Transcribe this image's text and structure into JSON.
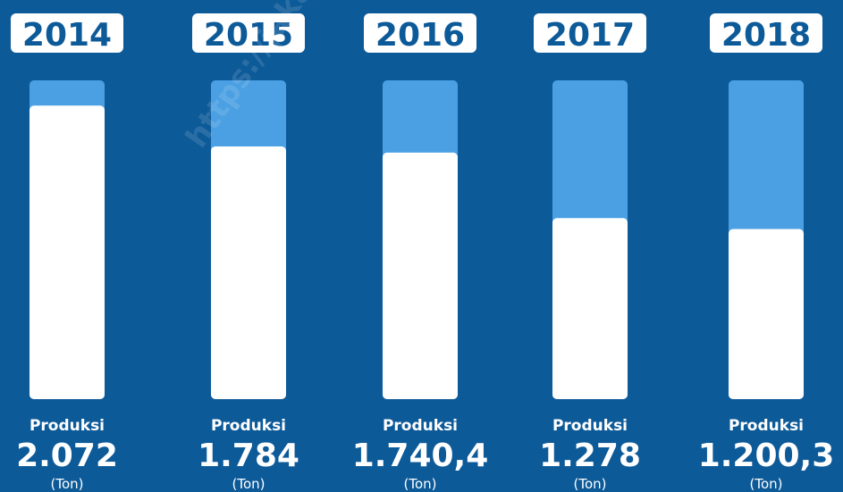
{
  "colors": {
    "background": "#0d5a99",
    "bar_track": "#4aa0e2",
    "bar_fill": "#ffffff",
    "year_badge": "#ffffff",
    "year_text": "#0d5a99"
  },
  "watermark": "https://jakarta",
  "chart_data": {
    "type": "bar",
    "categories": [
      "2014",
      "2015",
      "2016",
      "2017",
      "2018"
    ],
    "values": [
      2072,
      1784,
      1740.4,
      1278,
      1200.3
    ],
    "value_labels": [
      "2.072",
      "1.784",
      "1.740,4",
      "1.278",
      "1.200,3"
    ],
    "bar_caption": "Produksi",
    "unit": "(Ton)",
    "ylim": [
      0,
      2250
    ],
    "grid": false,
    "legend": "none"
  }
}
